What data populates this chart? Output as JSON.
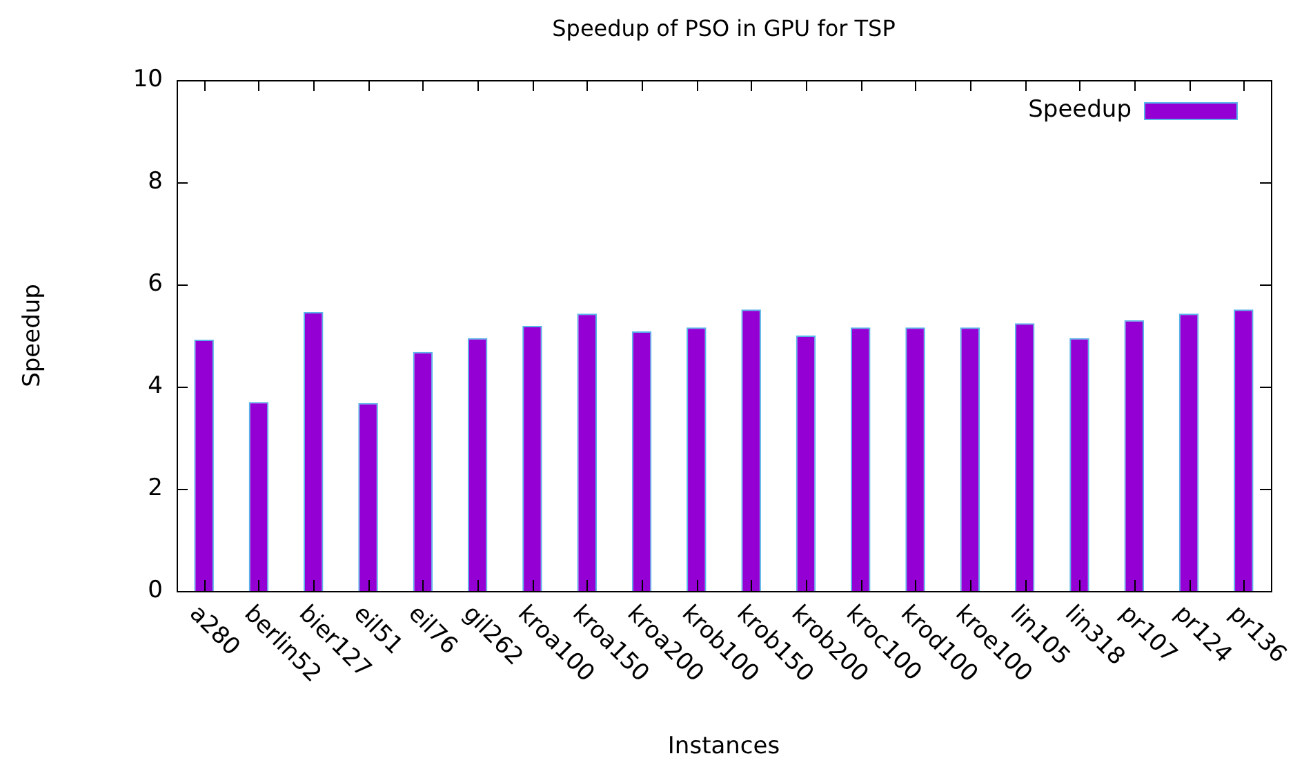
{
  "chart_data": {
    "type": "bar",
    "title": "Speedup of PSO in GPU for TSP",
    "xlabel": "Instances",
    "ylabel": "Speedup",
    "categories": [
      "a280",
      "berlin52",
      "bier127",
      "eil51",
      "eil76",
      "gil262",
      "kroa100",
      "kroa150",
      "kroa200",
      "krob100",
      "krob150",
      "krob200",
      "kroc100",
      "krod100",
      "kroe100",
      "lin105",
      "lin318",
      "pr107",
      "pr124",
      "pr136"
    ],
    "series": [
      {
        "name": "Speedup",
        "color": "#9400d3",
        "values": [
          4.92,
          3.7,
          5.46,
          3.68,
          4.68,
          4.95,
          5.19,
          5.43,
          5.08,
          5.16,
          5.51,
          5.0,
          5.16,
          5.16,
          5.16,
          5.24,
          4.95,
          5.3,
          5.43,
          5.51
        ]
      }
    ],
    "ylim": [
      0,
      10
    ],
    "yticks": [
      0,
      2,
      4,
      6,
      8,
      10
    ],
    "grid": false,
    "legend": "top right"
  }
}
